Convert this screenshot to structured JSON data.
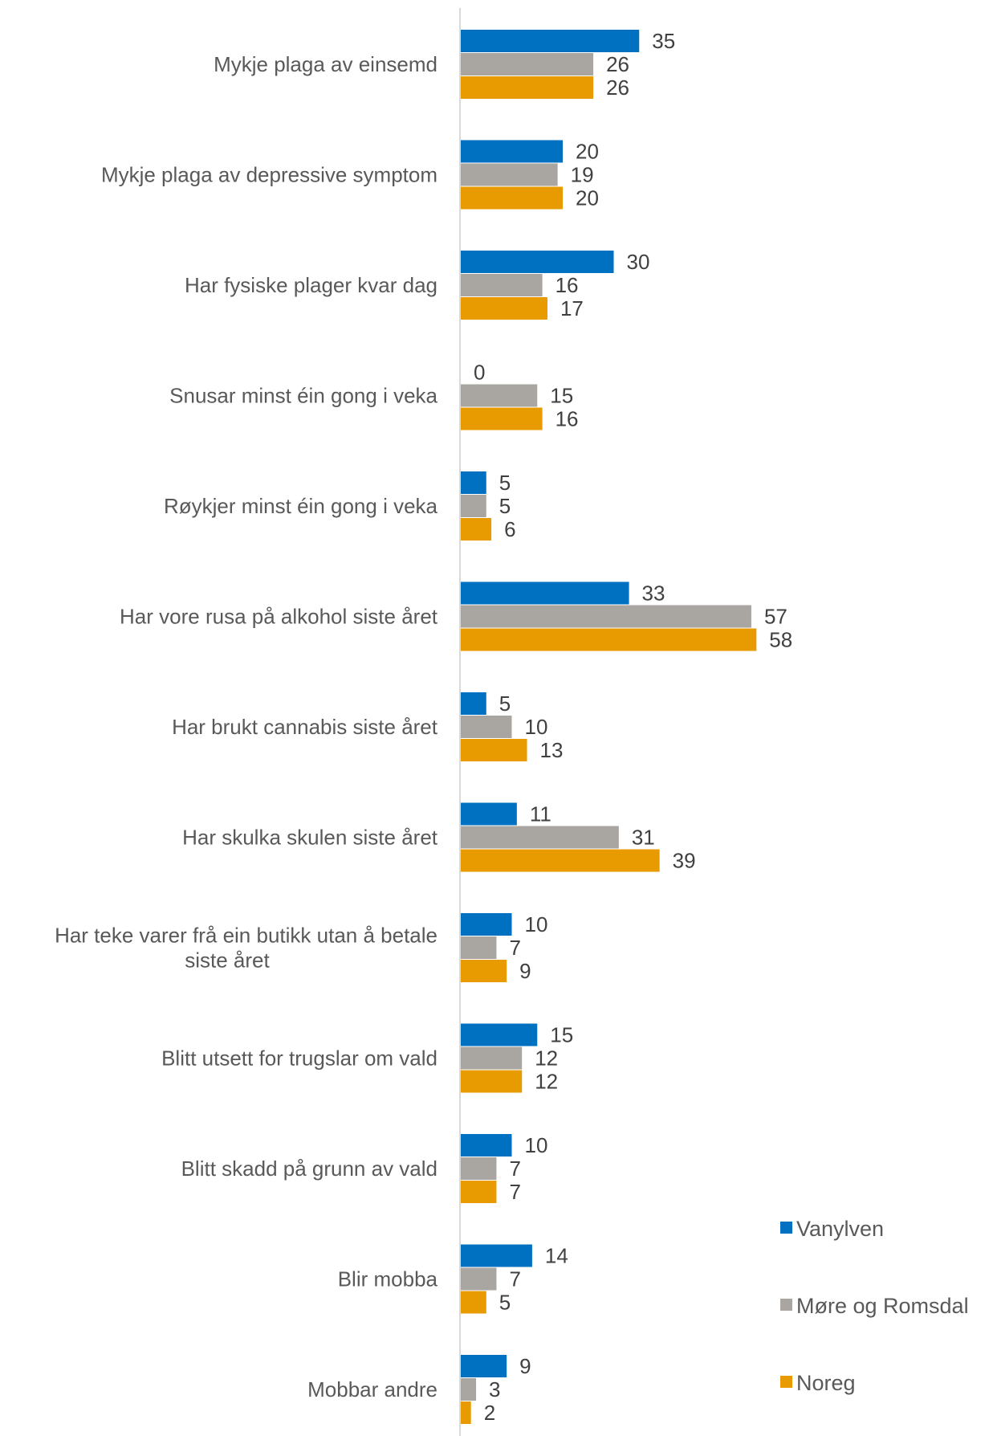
{
  "chart_data": {
    "type": "bar",
    "orientation": "horizontal",
    "title": "",
    "xlabel": "",
    "ylabel": "",
    "grid": false,
    "legend_position": "right",
    "categories": [
      [
        "Mykje plaga av einsemd"
      ],
      [
        "Mykje plaga av depressive symptom"
      ],
      [
        "Har fysiske plager kvar dag"
      ],
      [
        "Snusar minst éin gong i veka"
      ],
      [
        "Røykjer minst éin gong i veka"
      ],
      [
        "Har vore rusa på alkohol siste året"
      ],
      [
        "Har brukt cannabis siste året"
      ],
      [
        "Har skulka skulen siste året"
      ],
      [
        "Har teke varer frå ein butikk utan å betale",
        "siste året"
      ],
      [
        "Blitt utsett for trugslar om vald"
      ],
      [
        "Blitt skadd på grunn av vald"
      ],
      [
        "Blir mobba"
      ],
      [
        "Mobbar andre"
      ]
    ],
    "series": [
      {
        "name": "Vanylven",
        "color": "#0070C0",
        "values": [
          35,
          20,
          30,
          0,
          5,
          33,
          5,
          11,
          10,
          15,
          10,
          14,
          9
        ]
      },
      {
        "name": "Møre og Romsdal",
        "color": "#A9A5A0",
        "values": [
          26,
          19,
          16,
          15,
          5,
          57,
          10,
          31,
          7,
          12,
          7,
          7,
          3
        ]
      },
      {
        "name": "Noreg",
        "color": "#E89B00",
        "values": [
          26,
          20,
          17,
          16,
          6,
          58,
          13,
          39,
          9,
          12,
          7,
          5,
          2
        ]
      }
    ],
    "xlim": [
      0,
      58
    ]
  }
}
